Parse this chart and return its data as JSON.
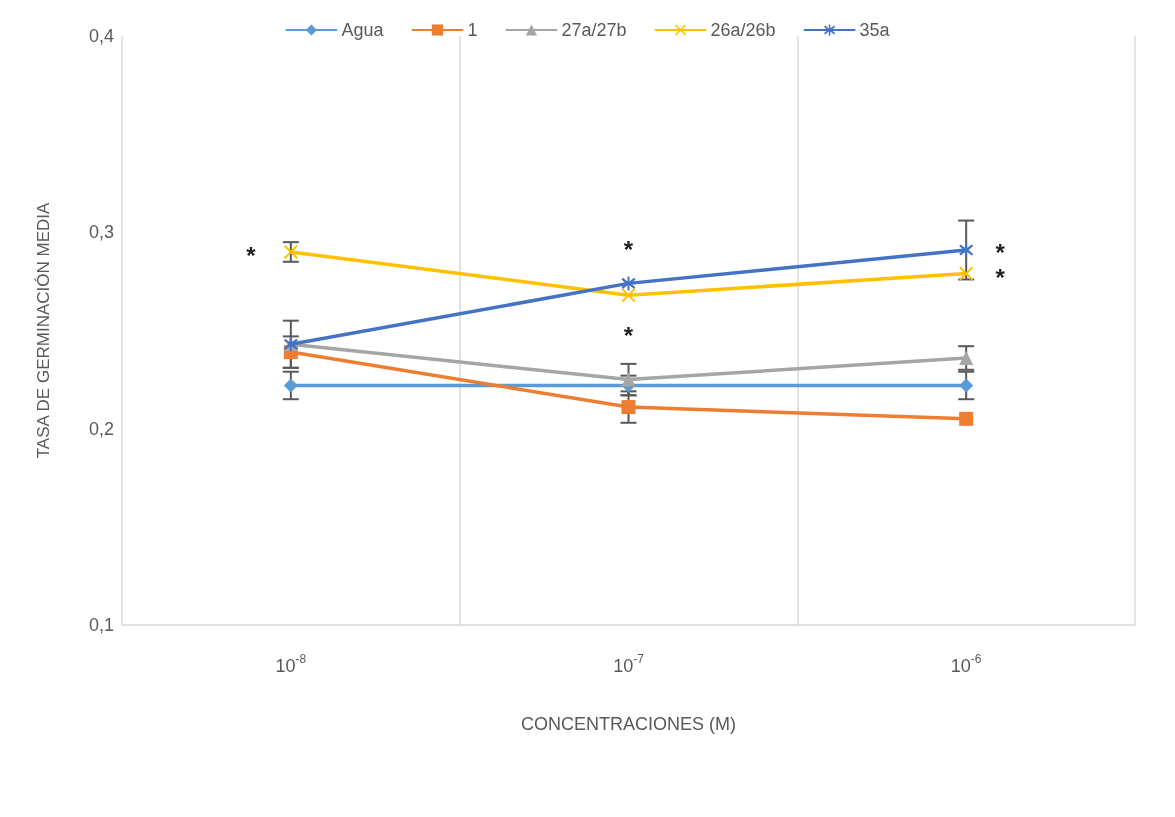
{
  "chart_data": {
    "type": "line",
    "xlabel": "CONCENTRACIONES (M)",
    "ylabel": "TASA DE GERMINACIÓN MEDIA",
    "categories": [
      "10$^{-8}$",
      "10$^{-7}$",
      "10$^{-6}$"
    ],
    "ylim": [
      0.1,
      0.4
    ],
    "yticks": [
      {
        "value": 0.1,
        "label": "0,1"
      },
      {
        "value": 0.2,
        "label": "0,2"
      },
      {
        "value": 0.3,
        "label": "0,3"
      },
      {
        "value": 0.4,
        "label": "0,4"
      }
    ],
    "grid": "x",
    "legend": "top",
    "tick_labels": "xy",
    "series": [
      {
        "name": "Agua",
        "color": "#5b9bd5",
        "marker": "diamond",
        "values": [
          0.222,
          0.222,
          0.222
        ],
        "errors": [
          0.007,
          0.005,
          0.007
        ]
      },
      {
        "name": "1",
        "color": "#ed7d31",
        "marker": "square",
        "values": [
          0.239,
          0.211,
          0.205
        ],
        "errors": [
          0.008,
          0.008,
          null
        ]
      },
      {
        "name": "27a/27b",
        "color": "#a5a5a5",
        "marker": "triangle",
        "values": [
          0.243,
          0.225,
          0.236
        ],
        "errors": [
          0.012,
          0.008,
          0.006
        ]
      },
      {
        "name": "26a/26b",
        "color": "#ffc000",
        "marker": "cross",
        "values": [
          0.29,
          0.268,
          0.279
        ],
        "errors": [
          0.005,
          null,
          null
        ]
      },
      {
        "name": "35a",
        "color": "#4472c4",
        "marker": "star",
        "values": [
          0.243,
          0.274,
          0.291
        ],
        "errors": [
          null,
          null,
          0.015
        ]
      }
    ],
    "annotations": [
      {
        "text": "*",
        "x": "10$^{-8}$",
        "y": 0.29
      },
      {
        "text": "*",
        "x": "10$^{-7}$",
        "y": 0.274
      },
      {
        "text": "*",
        "x": "10$^{-7}$",
        "y": 0.268
      },
      {
        "text": "*",
        "x": "10$^{-6}$",
        "y": 0.292
      },
      {
        "text": "*",
        "x": "10$^{-6}$",
        "y": 0.279
      }
    ]
  }
}
